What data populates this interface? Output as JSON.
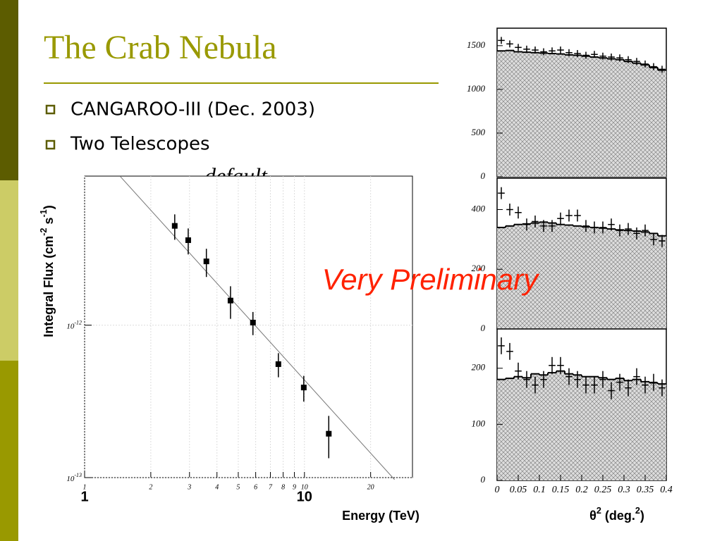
{
  "slide": {
    "title": "The Crab Nebula",
    "bullets": [
      "CANGAROO-III (Dec. 2003)",
      "Two Telescopes"
    ],
    "label_default": "default",
    "annotation": "Very Preliminary"
  },
  "chart_data": [
    {
      "type": "scatter",
      "log_x": true,
      "log_y": true,
      "grid": true,
      "xlabel": "Energy (TeV)",
      "ylabel": [
        "Integral Flux (cm",
        "-2",
        " s",
        "-1",
        ")"
      ],
      "xlim": [
        1,
        31
      ],
      "ylim": [
        1e-13,
        9.5e-12
      ],
      "xticks": [
        1,
        2,
        3,
        4,
        5,
        6,
        7,
        8,
        9,
        10,
        20
      ],
      "major_tick_labels": [
        1,
        10
      ],
      "yticks": [
        {
          "value": 1e-13,
          "label": "10",
          "exponent": "-13"
        },
        {
          "value": 1e-12,
          "label": "10",
          "exponent": "-12"
        }
      ],
      "x": [
        2.57,
        2.96,
        3.58,
        4.61,
        5.83,
        7.61,
        9.93,
        12.9
      ],
      "values": [
        4.48e-12,
        3.61e-12,
        2.62e-12,
        1.45e-12,
        1.04e-12,
        5.55e-13,
        3.9e-13,
        1.94e-13
      ],
      "errors": [
        8.5e-13,
        7e-13,
        5.5e-13,
        3.5e-13,
        1.8e-13,
        1e-13,
        7.5e-14,
        6e-14
      ],
      "fit": {
        "x": [
          1.45,
          25.7
        ],
        "values": [
          9.48e-12,
          9.7e-14
        ]
      }
    },
    {
      "type": "histogram",
      "xlim": [
        0,
        0.4
      ],
      "ylim": [
        0,
        1700
      ],
      "yticks": [
        0,
        500,
        1000,
        1500
      ],
      "bins": [
        0,
        0.02,
        0.04,
        0.06,
        0.08,
        0.1,
        0.12,
        0.14,
        0.16,
        0.18,
        0.2,
        0.22,
        0.24,
        0.26,
        0.28,
        0.3,
        0.32,
        0.34,
        0.36,
        0.38,
        0.4
      ],
      "counts": [
        1440,
        1445,
        1430,
        1425,
        1420,
        1415,
        1410,
        1405,
        1395,
        1390,
        1380,
        1370,
        1360,
        1350,
        1340,
        1320,
        1300,
        1280,
        1250,
        1220
      ],
      "points": {
        "x": [
          0.01,
          0.03,
          0.05,
          0.07,
          0.09,
          0.11,
          0.13,
          0.15,
          0.17,
          0.19,
          0.21,
          0.23,
          0.25,
          0.27,
          0.29,
          0.31,
          0.33,
          0.35,
          0.37,
          0.39
        ],
        "values": [
          1560,
          1520,
          1480,
          1460,
          1450,
          1430,
          1440,
          1450,
          1420,
          1410,
          1390,
          1400,
          1380,
          1370,
          1360,
          1340,
          1320,
          1290,
          1260,
          1230
        ],
        "errors": [
          40,
          40,
          40,
          40,
          40,
          40,
          40,
          40,
          40,
          40,
          40,
          40,
          40,
          40,
          40,
          40,
          40,
          40,
          40,
          40
        ]
      }
    },
    {
      "type": "histogram",
      "xlim": [
        0,
        0.4
      ],
      "ylim": [
        0,
        505
      ],
      "yticks": [
        0,
        200,
        400
      ],
      "bins": [
        0,
        0.02,
        0.04,
        0.06,
        0.08,
        0.1,
        0.12,
        0.14,
        0.16,
        0.18,
        0.2,
        0.22,
        0.24,
        0.26,
        0.28,
        0.3,
        0.32,
        0.34,
        0.36,
        0.38,
        0.4
      ],
      "counts": [
        340,
        345,
        350,
        352,
        355,
        358,
        355,
        350,
        348,
        345,
        342,
        340,
        338,
        335,
        332,
        330,
        328,
        325,
        320,
        312
      ],
      "points": {
        "x": [
          0.01,
          0.03,
          0.05,
          0.07,
          0.09,
          0.11,
          0.13,
          0.15,
          0.17,
          0.19,
          0.21,
          0.23,
          0.25,
          0.27,
          0.29,
          0.31,
          0.33,
          0.35,
          0.37,
          0.39
        ],
        "values": [
          455,
          400,
          390,
          350,
          360,
          345,
          345,
          370,
          380,
          380,
          345,
          340,
          340,
          350,
          330,
          335,
          320,
          330,
          300,
          295
        ],
        "errors": [
          20,
          20,
          20,
          20,
          20,
          20,
          20,
          20,
          20,
          20,
          20,
          20,
          20,
          20,
          20,
          20,
          20,
          20,
          20,
          20
        ]
      }
    },
    {
      "type": "histogram",
      "xlim": [
        0,
        0.4
      ],
      "ylim": [
        0,
        270
      ],
      "yticks": [
        0,
        100,
        200
      ],
      "xticks": [
        0,
        0.05,
        0.1,
        0.15,
        0.2,
        0.25,
        0.3,
        0.35,
        0.4
      ],
      "xlabel": [
        "θ",
        "2",
        " (deg.",
        "2",
        ")"
      ],
      "bins": [
        0,
        0.02,
        0.04,
        0.06,
        0.08,
        0.1,
        0.12,
        0.14,
        0.16,
        0.18,
        0.2,
        0.22,
        0.24,
        0.26,
        0.28,
        0.3,
        0.32,
        0.34,
        0.36,
        0.38,
        0.4
      ],
      "counts": [
        180,
        182,
        185,
        183,
        190,
        188,
        192,
        195,
        190,
        188,
        185,
        185,
        183,
        180,
        182,
        178,
        180,
        176,
        174,
        172
      ],
      "points": {
        "x": [
          0.01,
          0.03,
          0.05,
          0.07,
          0.09,
          0.11,
          0.13,
          0.15,
          0.17,
          0.19,
          0.21,
          0.23,
          0.25,
          0.27,
          0.29,
          0.31,
          0.33,
          0.35,
          0.37,
          0.39
        ],
        "values": [
          240,
          230,
          195,
          180,
          170,
          180,
          205,
          205,
          185,
          180,
          170,
          170,
          180,
          160,
          175,
          165,
          185,
          170,
          175,
          165
        ],
        "errors": [
          15,
          15,
          15,
          15,
          15,
          15,
          15,
          15,
          15,
          15,
          15,
          15,
          15,
          15,
          15,
          15,
          15,
          15,
          15,
          15
        ]
      }
    }
  ]
}
